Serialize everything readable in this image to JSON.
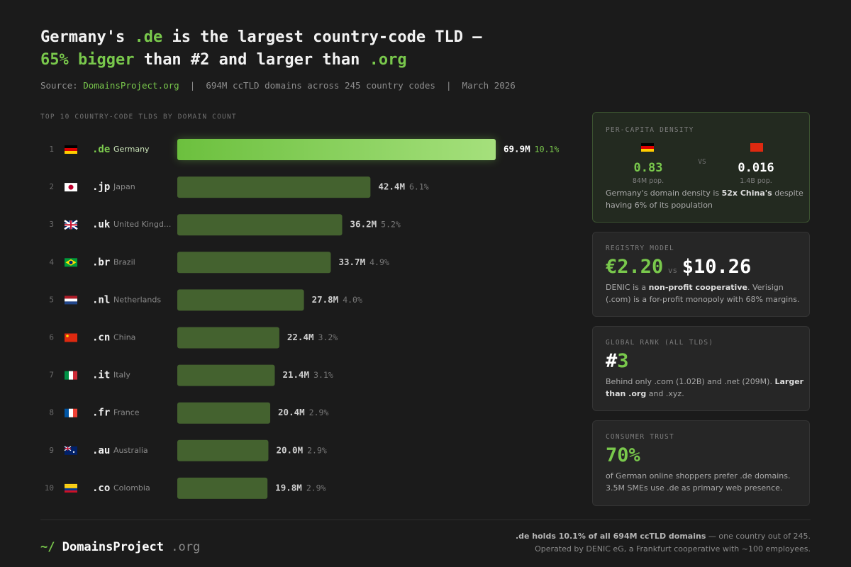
{
  "header": {
    "title_line1": [
      "Germany's ",
      ".de",
      " is the largest country-code TLD —"
    ],
    "title_line2": [
      "65% bigger",
      " than #2 and larger than ",
      ".org"
    ],
    "source": [
      "Source: ",
      "DomainsProject.org",
      "  |  694M ccTLD domains across 245 country codes  |  March 2026"
    ]
  },
  "chart_data": {
    "type": "bar",
    "orientation": "horizontal",
    "title": "TOP 10 COUNTRY-CODE TLDS BY DOMAIN COUNT",
    "ranks": [
      "1",
      "2",
      "3",
      "4",
      "5",
      "6",
      "7",
      "8",
      "9",
      "10"
    ],
    "categories": [
      ".de",
      ".jp",
      ".uk",
      ".br",
      ".nl",
      ".cn",
      ".it",
      ".fr",
      ".au",
      ".co"
    ],
    "countries": [
      "Germany",
      "Japan",
      "United Kingd...",
      "Brazil",
      "Netherlands",
      "China",
      "Italy",
      "France",
      "Australia",
      "Colombia"
    ],
    "values": [
      69.9,
      42.4,
      36.2,
      33.7,
      27.8,
      22.4,
      21.4,
      20.4,
      20.0,
      19.8
    ],
    "value_labels": [
      "69.9M",
      "42.4M",
      "36.2M",
      "33.7M",
      "27.8M",
      "22.4M",
      "21.4M",
      "20.4M",
      "20.0M",
      "19.8M"
    ],
    "share_labels": [
      "10.1%",
      "6.1%",
      "5.2%",
      "4.9%",
      "4.0%",
      "3.2%",
      "3.1%",
      "2.9%",
      "2.9%",
      "2.9%"
    ],
    "color": "#44622f",
    "highlight_color": "#7ccb4e"
  },
  "panels": {
    "density": {
      "label": "PER-CAPITA DENSITY",
      "left_value": "0.83",
      "left_pop": "84M pop.",
      "vs": "VS",
      "right_value": "0.016",
      "right_pop": "1.4B pop.",
      "text": [
        "Germany's domain density is ",
        "52x China's",
        " despite having 6% of its population"
      ]
    },
    "registry": {
      "label": "REGISTRY MODEL",
      "left_value": "€2.20",
      "vs": "vs",
      "right_value": "$10.26",
      "text": [
        "DENIC is a ",
        "non-profit cooperative",
        ". Verisign (.com) is a for-profit monopoly with 68% margins."
      ]
    },
    "rank": {
      "label": "GLOBAL RANK (ALL TLDS)",
      "value": [
        "#",
        "3"
      ],
      "text": [
        "Behind only .com (1.02B) and .net (209M). ",
        "Larger than .org",
        " and .xyz."
      ]
    },
    "trust": {
      "label": "CONSUMER TRUST",
      "value": "70%",
      "text": "of German online shoppers prefer .de domains. 3.5M SMEs use .de as primary web presence."
    }
  },
  "footer": {
    "logo": [
      "~/",
      " DomainsProject",
      " .org"
    ],
    "note_line1": [
      ".de holds 10.1% of all 694M ccTLD domains",
      " — one country out of 245."
    ],
    "note_line2": "Operated by DENIC eG, a Frankfurt cooperative with ~100 employees."
  }
}
